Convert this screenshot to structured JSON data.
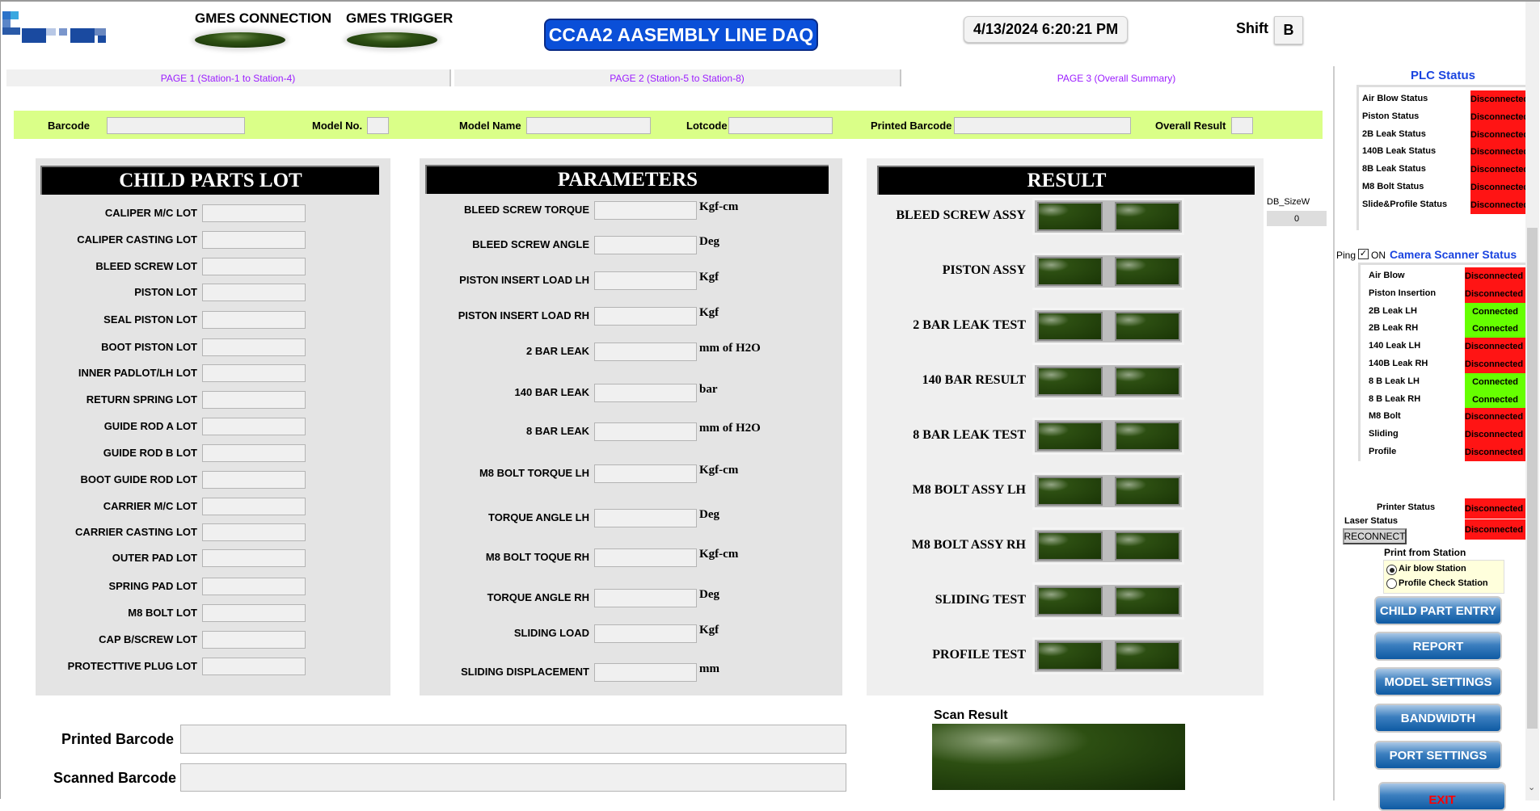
{
  "header": {
    "gmes_connection": "GMES CONNECTION",
    "gmes_trigger": "GMES TRIGGER",
    "title": "CCAA2 AASEMBLY LINE DAQ",
    "datetime": "4/13/2024 6:20:21 PM",
    "shift_label": "Shift",
    "shift_value": "B"
  },
  "tabs": [
    {
      "label": "PAGE 1 (Station-1 to Station-4)"
    },
    {
      "label": "PAGE 2  (Station-5 to Station-8)"
    },
    {
      "label": "PAGE 3 (Overall Summary)",
      "active": true
    }
  ],
  "info_bar": {
    "barcode": "Barcode",
    "model_no": "Model No.",
    "model_name": "Model Name",
    "lotcode": "Lotcode",
    "printed_barcode": "Printed Barcode",
    "overall_result": "Overall Result"
  },
  "child_parts": {
    "title": "CHILD PARTS LOT",
    "items": [
      "CALIPER M/C LOT",
      "CALIPER CASTING LOT",
      "BLEED SCREW LOT",
      "PISTON LOT",
      "SEAL PISTON LOT",
      "BOOT PISTON LOT",
      "INNER PADLOT/LH LOT",
      "RETURN SPRING LOT",
      "GUIDE ROD A LOT",
      "GUIDE ROD B LOT",
      "BOOT GUIDE ROD LOT",
      "CARRIER M/C LOT",
      "CARRIER CASTING LOT",
      "OUTER PAD LOT",
      "SPRING PAD LOT",
      "M8 BOLT LOT",
      "CAP B/SCREW LOT",
      "PROTECTTIVE PLUG LOT"
    ]
  },
  "parameters": {
    "title": "PARAMETERS",
    "items": [
      {
        "label": "BLEED SCREW TORQUE",
        "unit": "Kgf-cm"
      },
      {
        "label": "BLEED SCREW ANGLE",
        "unit": "Deg"
      },
      {
        "label": "PISTON INSERT LOAD LH",
        "unit": "Kgf"
      },
      {
        "label": "PISTON INSERT LOAD RH",
        "unit": "Kgf"
      },
      {
        "label": "2 BAR LEAK",
        "unit": "mm of H2O"
      },
      {
        "label": "140 BAR LEAK",
        "unit": "bar"
      },
      {
        "label": "8 BAR LEAK",
        "unit": "mm of H2O"
      },
      {
        "label": "M8 BOLT TORQUE LH",
        "unit": "Kgf-cm"
      },
      {
        "label": "TORQUE ANGLE LH",
        "unit": "Deg"
      },
      {
        "label": "M8 BOLT TOQUE RH",
        "unit": "Kgf-cm"
      },
      {
        "label": "TORQUE ANGLE RH",
        "unit": "Deg"
      },
      {
        "label": "SLIDING LOAD",
        "unit": "Kgf"
      },
      {
        "label": "SLIDING DISPLACEMENT",
        "unit": "mm"
      }
    ]
  },
  "result": {
    "title": "RESULT",
    "items": [
      "BLEED SCREW ASSY",
      "PISTON ASSY",
      "2 BAR LEAK TEST",
      "140 BAR RESULT",
      "8 BAR LEAK TEST",
      "M8 BOLT ASSY LH",
      "M8 BOLT ASSY RH",
      "SLIDING TEST",
      "PROFILE TEST"
    ]
  },
  "db_size": {
    "label": "DB_SizeW",
    "value": "0"
  },
  "plc": {
    "title": "PLC Status",
    "items": [
      {
        "label": "Air Blow Status",
        "status": "Disconnected"
      },
      {
        "label": "Piston Status",
        "status": "Disconnected"
      },
      {
        "label": "2B Leak Status",
        "status": "Disconnected"
      },
      {
        "label": "140B Leak Status",
        "status": "Disconnected"
      },
      {
        "label": "8B Leak Status",
        "status": "Disconnected"
      },
      {
        "label": "M8 Bolt Status",
        "status": "Disconnected"
      },
      {
        "label": "Slide&Profile Status",
        "status": "Disconnected"
      }
    ]
  },
  "ping": {
    "label": "Ping",
    "checked": true,
    "on_label": "ON"
  },
  "camera": {
    "title": "Camera Scanner Status",
    "items": [
      {
        "label": "Air Blow",
        "status": "Disconnected"
      },
      {
        "label": "Piston Insertion",
        "status": "Disconnected"
      },
      {
        "label": "2B Leak  LH",
        "status": "Connected"
      },
      {
        "label": "2B Leak  RH",
        "status": "Connected"
      },
      {
        "label": "140 Leak  LH",
        "status": "Disconnected"
      },
      {
        "label": "140B Leak  RH",
        "status": "Disconnected"
      },
      {
        "label": "8 B Leak  LH",
        "status": "Connected"
      },
      {
        "label": "8 B Leak  RH",
        "status": "Connected"
      },
      {
        "label": "M8 Bolt",
        "status": "Disconnected"
      },
      {
        "label": "Sliding",
        "status": "Disconnected"
      },
      {
        "label": "Profile",
        "status": "Disconnected"
      }
    ]
  },
  "printer": {
    "label": "Printer Status",
    "status": "Disconnected"
  },
  "laser": {
    "label": "Laser Status",
    "status": "Disconnected",
    "reconnect": "RECONNECT"
  },
  "print_from": {
    "title": "Print from Station",
    "options": [
      "Air blow Station",
      "Profile Check Station"
    ],
    "selected": "Air blow Station"
  },
  "buttons": [
    "CHILD PART ENTRY",
    "REPORT",
    "MODEL SETTINGS",
    "BANDWIDTH",
    "PORT SETTINGS",
    "EXIT"
  ],
  "bottom": {
    "printed_barcode": "Printed Barcode",
    "scanned_barcode": "Scanned Barcode",
    "scan_result": "Scan Result"
  },
  "colors": {
    "disconnected": "#ff1414",
    "connected": "#66ff00",
    "title_blue": "#0a4fd8",
    "info_bar": "#daff88",
    "tab_text": "#9b1cff"
  }
}
